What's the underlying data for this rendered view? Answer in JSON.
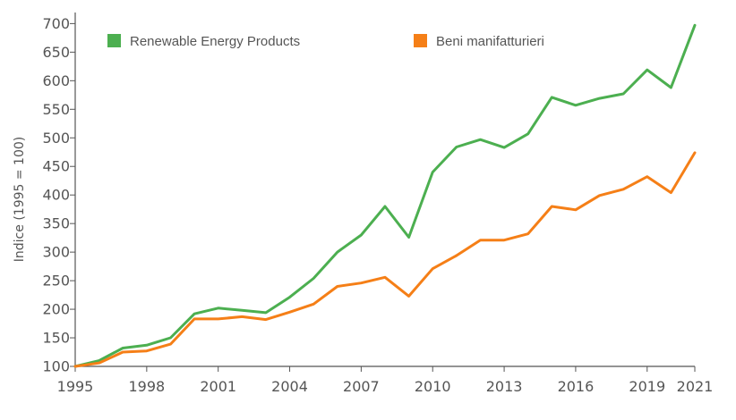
{
  "chart_data": {
    "type": "line",
    "title": "",
    "xlabel": "",
    "ylabel": "Indice (1995 = 100)",
    "x": [
      1995,
      1996,
      1997,
      1998,
      1999,
      2000,
      2001,
      2002,
      2003,
      2004,
      2005,
      2006,
      2007,
      2008,
      2009,
      2010,
      2011,
      2012,
      2013,
      2014,
      2015,
      2016,
      2017,
      2018,
      2019,
      2020,
      2021
    ],
    "xticks": [
      "1995",
      "1998",
      "2001",
      "2004",
      "2007",
      "2010",
      "2013",
      "2016",
      "2019",
      "2021"
    ],
    "yticks": [
      "100",
      "150",
      "200",
      "250",
      "300",
      "350",
      "400",
      "450",
      "500",
      "550",
      "600",
      "650",
      "700"
    ],
    "ylim": [
      100,
      710
    ],
    "xlim": [
      1995,
      2021
    ],
    "grid": false,
    "legend_position": "top",
    "series": [
      {
        "name": "Renewable Energy Products",
        "color": "#4caf50",
        "values": [
          100,
          110,
          132,
          137,
          150,
          192,
          202,
          198,
          194,
          221,
          254,
          300,
          330,
          380,
          326,
          440,
          484,
          497,
          483,
          507,
          571,
          557,
          569,
          577,
          619,
          588,
          697
        ]
      },
      {
        "name": "Beni manifatturieri",
        "color": "#f57f17",
        "values": [
          100,
          106,
          125,
          127,
          139,
          183,
          183,
          187,
          182,
          195,
          209,
          240,
          246,
          256,
          223,
          271,
          294,
          321,
          321,
          332,
          380,
          374,
          399,
          410,
          432,
          404,
          474
        ]
      }
    ]
  }
}
